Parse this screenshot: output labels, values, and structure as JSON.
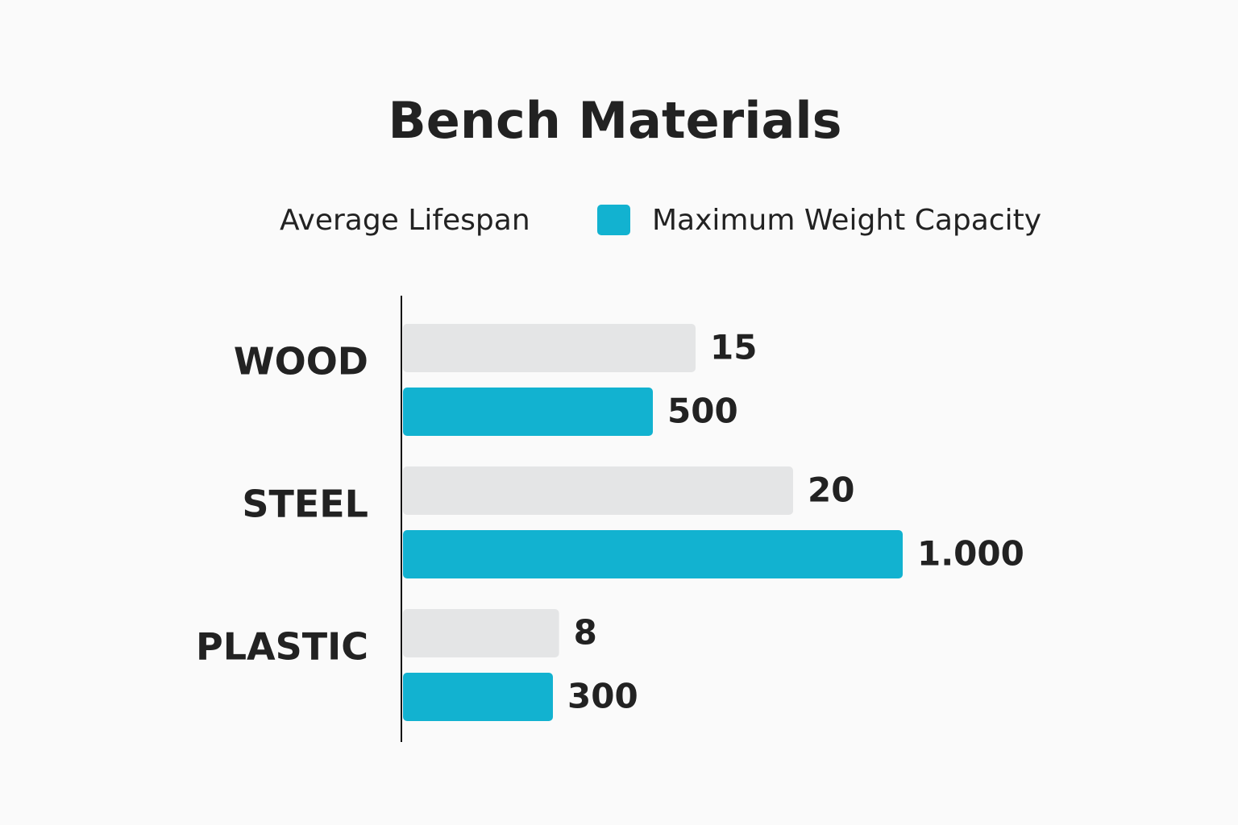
{
  "chart_data": {
    "type": "hbar",
    "title": "Bench Materials",
    "categories": [
      "WOOD",
      "STEEL",
      "PLASTIC"
    ],
    "series": [
      {
        "name": "Average Lifespan",
        "color": "#e4e5e6",
        "values": [
          15,
          20,
          8
        ]
      },
      {
        "name": "Maximum Weight Capacity",
        "color": "#12b2d0",
        "values": [
          500,
          1000,
          300
        ],
        "value_labels": [
          "500",
          "1.000",
          "300"
        ]
      }
    ]
  }
}
